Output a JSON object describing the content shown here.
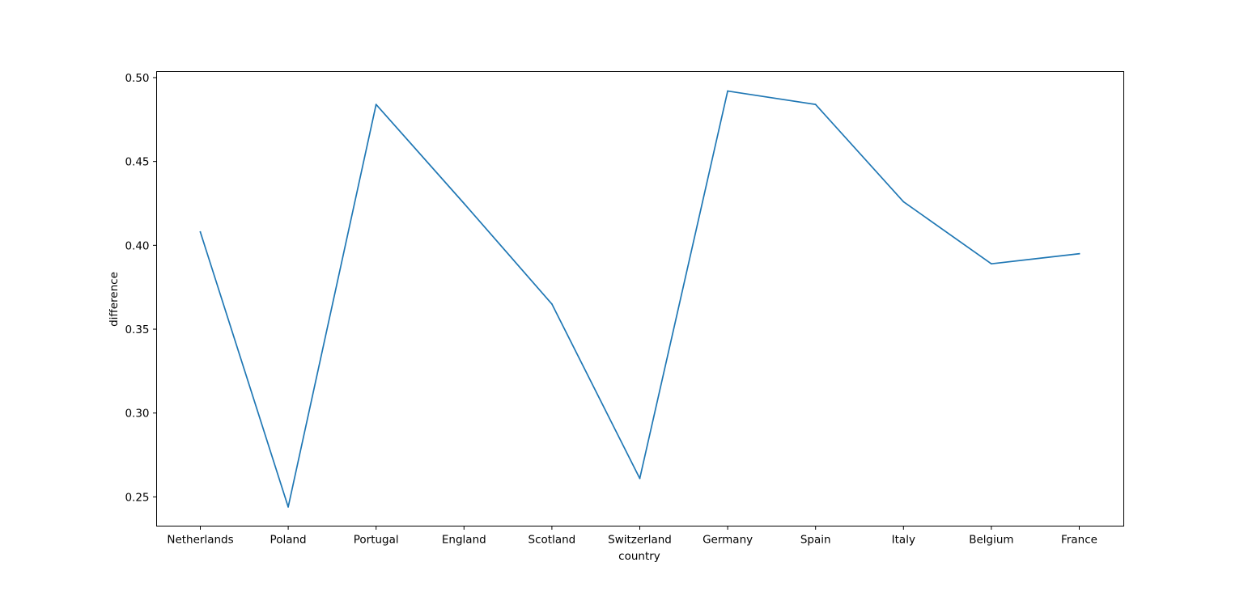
{
  "chart_data": {
    "type": "line",
    "title": "",
    "xlabel": "country",
    "ylabel": "difference",
    "categories": [
      "Netherlands",
      "Poland",
      "Portugal",
      "England",
      "Scotland",
      "Switzerland",
      "Germany",
      "Spain",
      "Italy",
      "Belgium",
      "France"
    ],
    "series": [
      {
        "values": [
          0.408,
          0.244,
          0.484,
          0.425,
          0.365,
          0.261,
          0.492,
          0.484,
          0.426,
          0.389,
          0.395
        ],
        "color": "#1f77b4"
      }
    ],
    "ylim": [
      0.2326,
      0.5036
    ],
    "yticks": [
      0.25,
      0.3,
      0.35,
      0.4,
      0.45,
      0.5
    ],
    "ytick_labels": [
      "0.25",
      "0.30",
      "0.35",
      "0.40",
      "0.45",
      "0.50"
    ],
    "grid": false,
    "legend": "none"
  }
}
